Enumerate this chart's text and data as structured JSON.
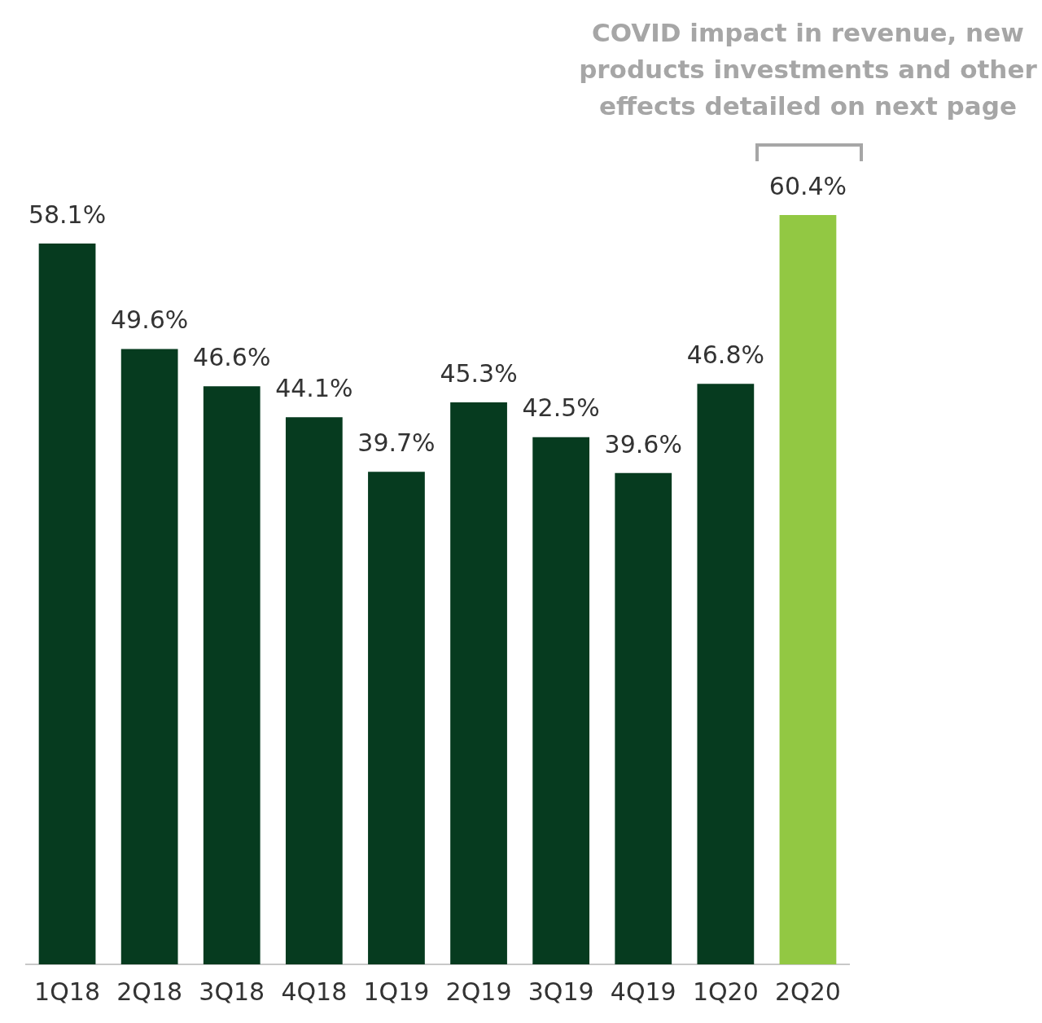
{
  "chart_data": {
    "type": "bar",
    "categories": [
      "1Q18",
      "2Q18",
      "3Q18",
      "4Q18",
      "1Q19",
      "2Q19",
      "3Q19",
      "4Q19",
      "1Q20",
      "2Q20"
    ],
    "values": [
      58.1,
      49.6,
      46.6,
      44.1,
      39.7,
      45.3,
      42.5,
      39.6,
      46.8,
      60.4
    ],
    "colors": [
      "#063b1f",
      "#063b1f",
      "#063b1f",
      "#063b1f",
      "#063b1f",
      "#063b1f",
      "#063b1f",
      "#063b1f",
      "#063b1f",
      "#92c843"
    ],
    "value_labels": [
      "58.1%",
      "49.6%",
      "46.6%",
      "44.1%",
      "39.7%",
      "45.3%",
      "42.5%",
      "39.6%",
      "46.8%",
      "60.4%"
    ],
    "annotations": [
      "COVID impact in revenue, new products investments and other effects detailed on next page"
    ],
    "grid": false,
    "legend": false
  }
}
